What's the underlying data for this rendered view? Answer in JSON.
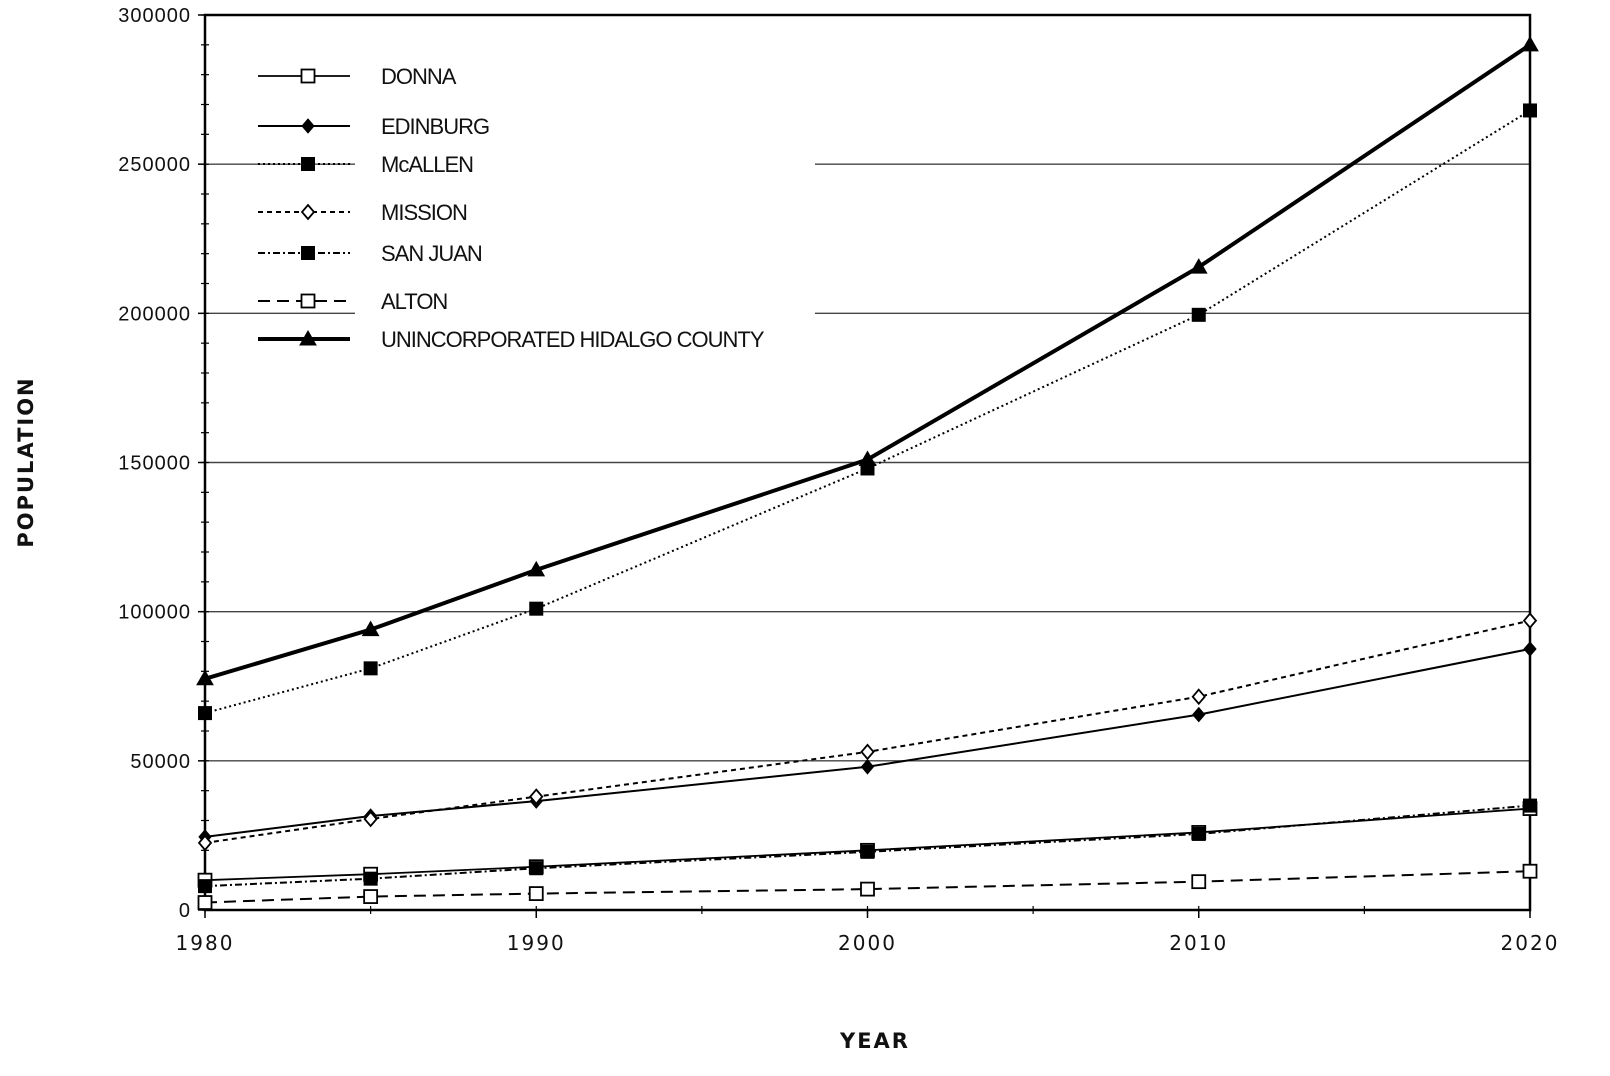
{
  "chart_data": {
    "type": "line",
    "xlabel": "YEAR",
    "ylabel": "POPULATION",
    "x": [
      1980,
      1985,
      1990,
      2000,
      2010,
      2020
    ],
    "xticks": [
      1980,
      1990,
      2000,
      2010,
      2020
    ],
    "xlim": [
      1980,
      2020
    ],
    "ylim": [
      0,
      300000
    ],
    "yticks": [
      0,
      50000,
      100000,
      150000,
      200000,
      250000,
      300000
    ],
    "grid": true,
    "legend_position": "top-left",
    "series": [
      {
        "name": "DONNA",
        "marker": "open-square",
        "line": "solid",
        "width": 1.8,
        "values": [
          10000,
          12000,
          14500,
          20000,
          26000,
          34000
        ]
      },
      {
        "name": "EDINBURG",
        "marker": "filled-diamond",
        "line": "solid",
        "width": 2,
        "values": [
          24500,
          31500,
          36500,
          48000,
          65500,
          87500
        ]
      },
      {
        "name": "McALLEN",
        "marker": "filled-square",
        "line": "dotted",
        "width": 2,
        "values": [
          66000,
          81000,
          101000,
          148000,
          199500,
          268000
        ]
      },
      {
        "name": "MISSION",
        "marker": "open-diamond",
        "line": "dashed-short",
        "width": 2,
        "values": [
          22500,
          30500,
          38000,
          53000,
          71500,
          97000
        ]
      },
      {
        "name": "SAN JUAN",
        "marker": "filled-square",
        "line": "dash-dot",
        "width": 2,
        "values": [
          8000,
          10500,
          14000,
          19500,
          25500,
          35000
        ]
      },
      {
        "name": "ALTON",
        "marker": "open-square",
        "line": "dashed-long",
        "width": 2,
        "values": [
          2500,
          4500,
          5500,
          7000,
          9500,
          13000
        ]
      },
      {
        "name": "UNINCORPORATED HIDALGO COUNTY",
        "marker": "filled-triangle",
        "line": "solid",
        "width": 4,
        "values": [
          77500,
          94000,
          114000,
          151000,
          215500,
          290000
        ]
      }
    ]
  }
}
